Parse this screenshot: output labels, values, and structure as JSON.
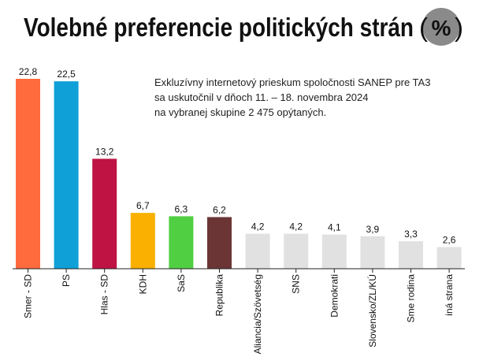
{
  "chart_data": {
    "type": "bar",
    "title": "Volebné preferencie politických strán",
    "title_badge": "%",
    "note_lines": [
      "Exkluzívny internetový prieskum spoločnosti SANEP pre TA3",
      "sa uskutočnil v dňoch 11. – 18. novembra 2024",
      "na vybranej skupine 2 475 opýtaných."
    ],
    "categories": [
      "Smer - SD",
      "PS",
      "Hlas - SD",
      "KDH",
      "SaS",
      "Republika",
      "Aliancia/Szövetség",
      "SNS",
      "Demokrati",
      "Slovensko/ZL/KÚ",
      "Sme rodina",
      "iná strana"
    ],
    "values": [
      22.8,
      22.5,
      13.2,
      6.7,
      6.3,
      6.2,
      4.2,
      4.2,
      4.1,
      3.9,
      3.3,
      2.6
    ],
    "value_labels": [
      "22,8",
      "22,5",
      "13,2",
      "6,7",
      "6,3",
      "6,2",
      "4,2",
      "4,2",
      "4,1",
      "3,9",
      "3,3",
      "2,6"
    ],
    "colors": [
      "#ff6b3d",
      "#10a0d8",
      "#be1343",
      "#f9b000",
      "#50cf42",
      "#6b3535",
      "#e1e1e1",
      "#e1e1e1",
      "#e1e1e1",
      "#e1e1e1",
      "#e1e1e1",
      "#e1e1e1"
    ],
    "ylim": [
      0,
      22.8
    ],
    "grid": false,
    "legend": "none",
    "badge_color": "#8a8a8a"
  }
}
